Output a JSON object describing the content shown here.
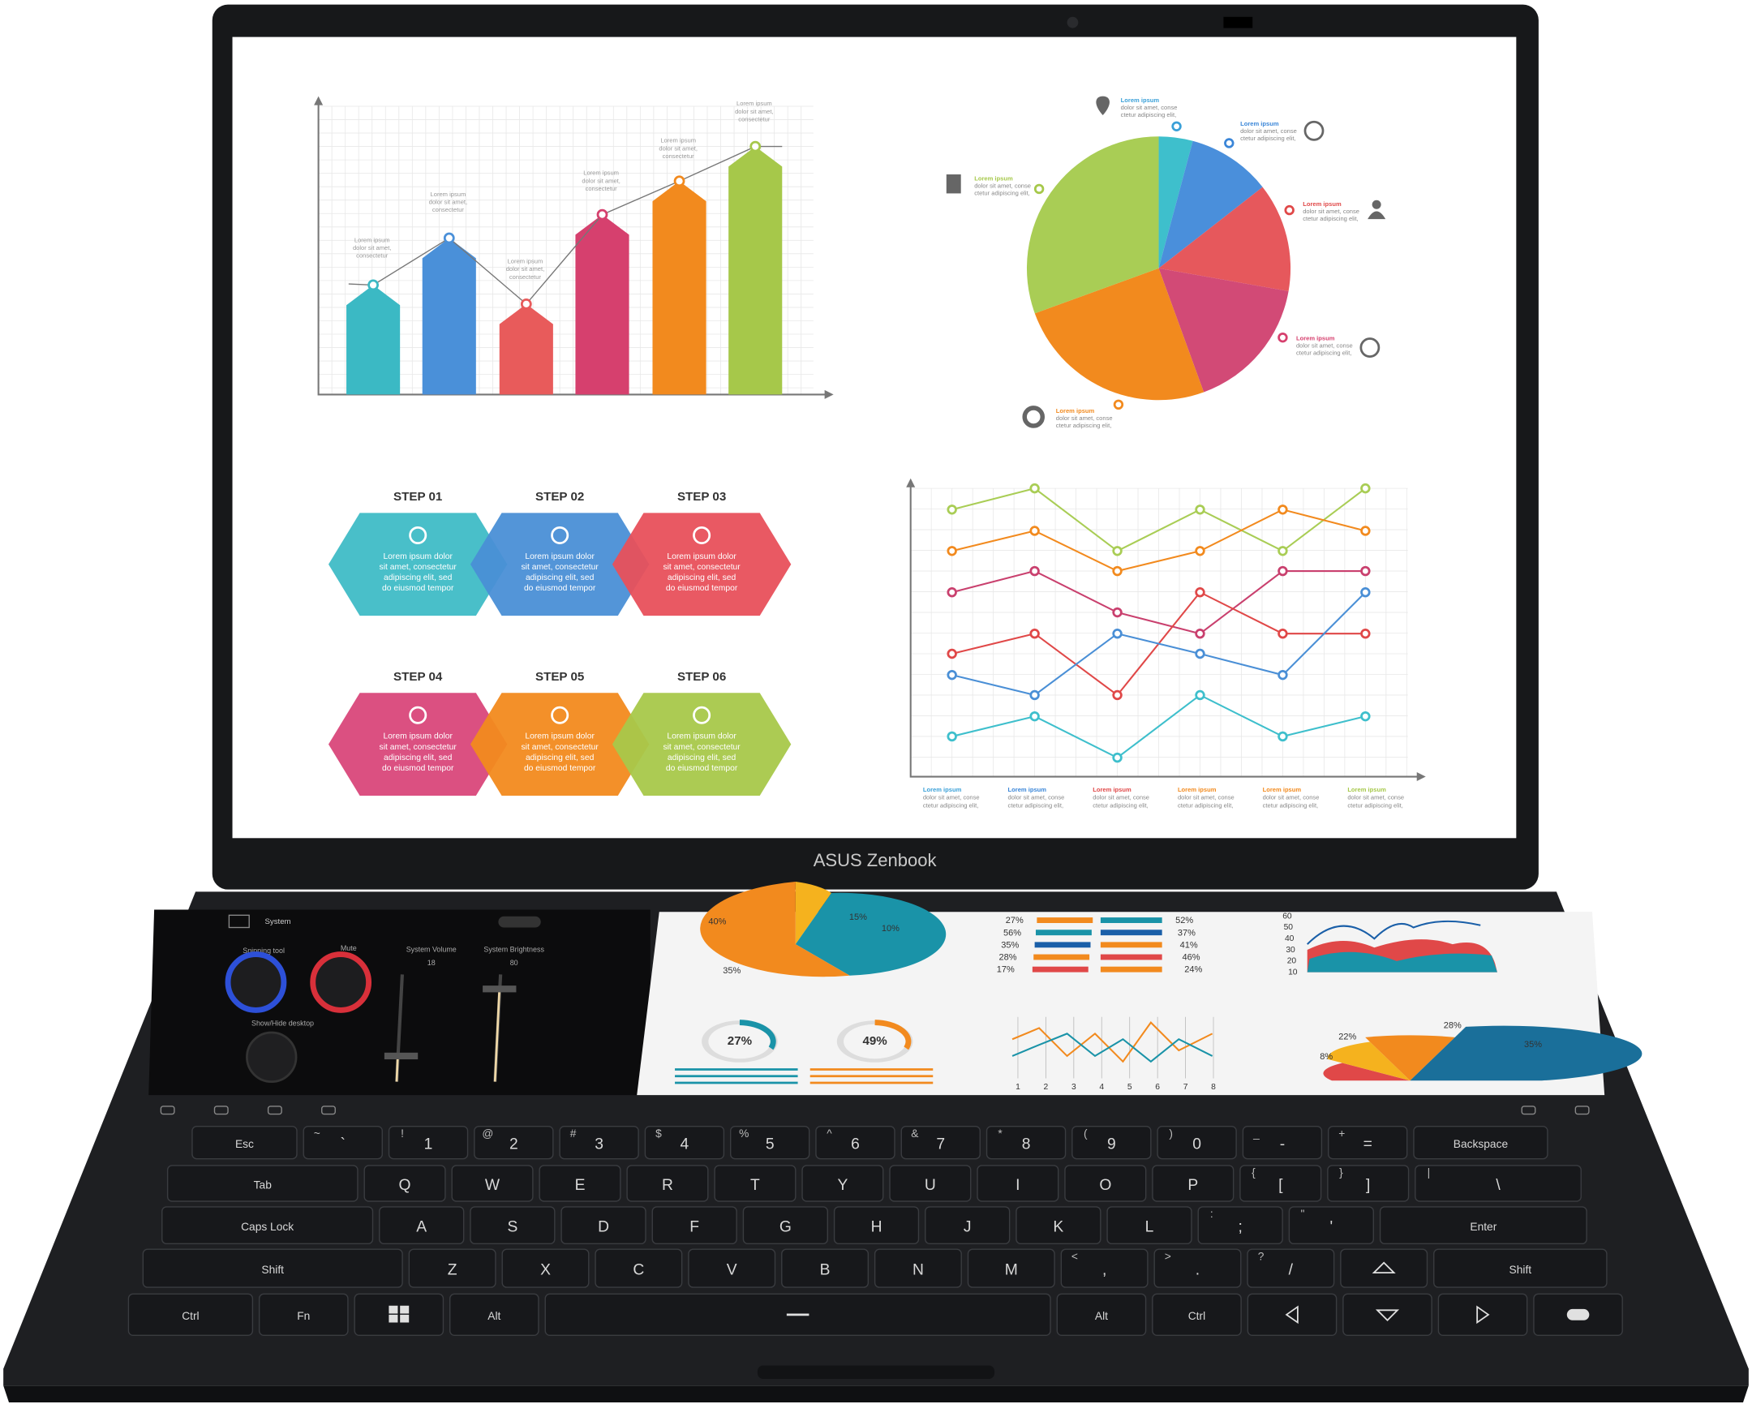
{
  "brand": "ASUS Zenbook",
  "main_screen": {
    "bar_notes": [
      [
        "Lorem ipsum",
        "dolor sit amet,",
        "consectetur"
      ],
      [
        "Lorem ipsum",
        "dolor sit amet,",
        "consectetur"
      ],
      [
        "Lorem ipsum",
        "dolor sit amet,",
        "consectetur"
      ],
      [
        "Lorem ipsum",
        "dolor sit amet,",
        "consectetur"
      ],
      [
        "Lorem ipsum",
        "dolor sit amet,",
        "consectetur"
      ],
      [
        "Lorem ipsum",
        "dolor sit amet,",
        "consectetur"
      ]
    ],
    "pie_notes": [
      {
        "title": "Lorem ipsum",
        "lines": [
          "dolor sit amet, conse",
          "ctetur adipiscing elit,"
        ]
      },
      {
        "title": "Lorem ipsum",
        "lines": [
          "dolor sit amet, conse",
          "ctetur adipiscing elit,"
        ]
      },
      {
        "title": "Lorem ipsum",
        "lines": [
          "dolor sit amet, conse",
          "ctetur adipiscing elit,"
        ]
      },
      {
        "title": "Lorem ipsum",
        "lines": [
          "dolor sit amet, conse",
          "ctetur adipiscing elit,"
        ]
      },
      {
        "title": "Lorem ipsum",
        "lines": [
          "dolor sit amet, conse",
          "ctetur adipiscing elit,"
        ]
      },
      {
        "title": "Lorem ipsum",
        "lines": [
          "dolor sit amet, conse",
          "ctetur adipiscing elit,"
        ]
      }
    ],
    "steps": [
      {
        "title": "STEP 01",
        "lines": [
          "Lorem ipsum dolor",
          "sit amet, consectetur",
          "adipiscing elit, sed",
          "do eiusmod tempor"
        ]
      },
      {
        "title": "STEP 02",
        "lines": [
          "Lorem ipsum dolor",
          "sit amet, consectetur",
          "adipiscing elit, sed",
          "do eiusmod tempor"
        ]
      },
      {
        "title": "STEP 03",
        "lines": [
          "Lorem ipsum dolor",
          "sit amet, consectetur",
          "adipiscing elit, sed",
          "do eiusmod tempor"
        ]
      },
      {
        "title": "STEP 04",
        "lines": [
          "Lorem ipsum dolor",
          "sit amet, consectetur",
          "adipiscing elit, sed",
          "do eiusmod tempor"
        ]
      },
      {
        "title": "STEP 05",
        "lines": [
          "Lorem ipsum dolor",
          "sit amet, consectetur",
          "adipiscing elit, sed",
          "do eiusmod tempor"
        ]
      },
      {
        "title": "STEP 06",
        "lines": [
          "Lorem ipsum dolor",
          "sit amet, consectetur",
          "adipiscing elit, sed",
          "do eiusmod tempor"
        ]
      }
    ],
    "line_notes": [
      {
        "title": "Lorem ipsum",
        "lines": [
          "dolor sit amet, conse",
          "ctetur adipiscing elit,"
        ]
      },
      {
        "title": "Lorem ipsum",
        "lines": [
          "dolor sit amet, conse",
          "ctetur adipiscing elit,"
        ]
      },
      {
        "title": "Lorem ipsum",
        "lines": [
          "dolor sit amet, conse",
          "ctetur adipiscing elit,"
        ]
      },
      {
        "title": "Lorem ipsum",
        "lines": [
          "dolor sit amet, conse",
          "ctetur adipiscing elit,"
        ]
      },
      {
        "title": "Lorem ipsum",
        "lines": [
          "dolor sit amet, conse",
          "ctetur adipiscing elit,"
        ]
      },
      {
        "title": "Lorem ipsum",
        "lines": [
          "dolor sit amet, conse",
          "ctetur adipiscing elit,"
        ]
      }
    ]
  },
  "control_panel": {
    "title": "System",
    "tools": [
      "Snipping tool",
      "Mute",
      "Show/Hide desktop"
    ],
    "sliders": [
      {
        "label": "System Volume",
        "value": "18"
      },
      {
        "label": "System Brightness",
        "value": "80"
      }
    ]
  },
  "second_screen": {
    "pie_labels": [
      "40%",
      "15%",
      "10%",
      "35%"
    ],
    "bar_left": [
      "27%",
      "56%",
      "35%",
      "28%",
      "17%"
    ],
    "bar_right": [
      "52%",
      "37%",
      "41%",
      "46%",
      "24%"
    ],
    "area_axis": [
      "60",
      "50",
      "40",
      "30",
      "20",
      "10"
    ],
    "gauges": [
      "27%",
      "49%"
    ],
    "line_axis": [
      "1",
      "2",
      "3",
      "4",
      "5",
      "6",
      "7",
      "8"
    ],
    "fan_labels": [
      "22%",
      "8%",
      "28%",
      "35%"
    ]
  },
  "keyboard": {
    "rows": [
      [
        {
          "label": "Esc"
        },
        {
          "label": "`",
          "shift": "~"
        },
        {
          "label": "1",
          "shift": "!"
        },
        {
          "label": "2",
          "shift": "@"
        },
        {
          "label": "3",
          "shift": "#"
        },
        {
          "label": "4",
          "shift": "$"
        },
        {
          "label": "5",
          "shift": "%"
        },
        {
          "label": "6",
          "shift": "^"
        },
        {
          "label": "7",
          "shift": "&"
        },
        {
          "label": "8",
          "shift": "*"
        },
        {
          "label": "9",
          "shift": "("
        },
        {
          "label": "0",
          "shift": ")"
        },
        {
          "label": "-",
          "shift": "_"
        },
        {
          "label": "=",
          "shift": "+"
        },
        {
          "label": "Backspace"
        }
      ],
      [
        {
          "label": "Tab"
        },
        {
          "label": "Q"
        },
        {
          "label": "W"
        },
        {
          "label": "E"
        },
        {
          "label": "R"
        },
        {
          "label": "T"
        },
        {
          "label": "Y"
        },
        {
          "label": "U"
        },
        {
          "label": "I"
        },
        {
          "label": "O"
        },
        {
          "label": "P"
        },
        {
          "label": "[",
          "shift": "{"
        },
        {
          "label": "]",
          "shift": "}"
        },
        {
          "label": "\\",
          "shift": "|"
        }
      ],
      [
        {
          "label": "Caps Lock"
        },
        {
          "label": "A"
        },
        {
          "label": "S"
        },
        {
          "label": "D"
        },
        {
          "label": "F"
        },
        {
          "label": "G"
        },
        {
          "label": "H"
        },
        {
          "label": "J"
        },
        {
          "label": "K"
        },
        {
          "label": "L"
        },
        {
          "label": ";",
          "shift": ":"
        },
        {
          "label": "'",
          "shift": "\""
        },
        {
          "label": "Enter"
        }
      ],
      [
        {
          "label": "Shift"
        },
        {
          "label": "Z"
        },
        {
          "label": "X"
        },
        {
          "label": "C"
        },
        {
          "label": "V"
        },
        {
          "label": "B"
        },
        {
          "label": "N"
        },
        {
          "label": "M"
        },
        {
          "label": ",",
          "shift": "<"
        },
        {
          "label": ".",
          "shift": ">"
        },
        {
          "label": "/",
          "shift": "?"
        },
        {
          "label": "Shift"
        }
      ],
      [
        {
          "label": "Ctrl"
        },
        {
          "label": "Fn"
        },
        {
          "label": "Alt"
        },
        {
          "label": "Alt"
        },
        {
          "label": "Ctrl"
        }
      ]
    ]
  }
}
